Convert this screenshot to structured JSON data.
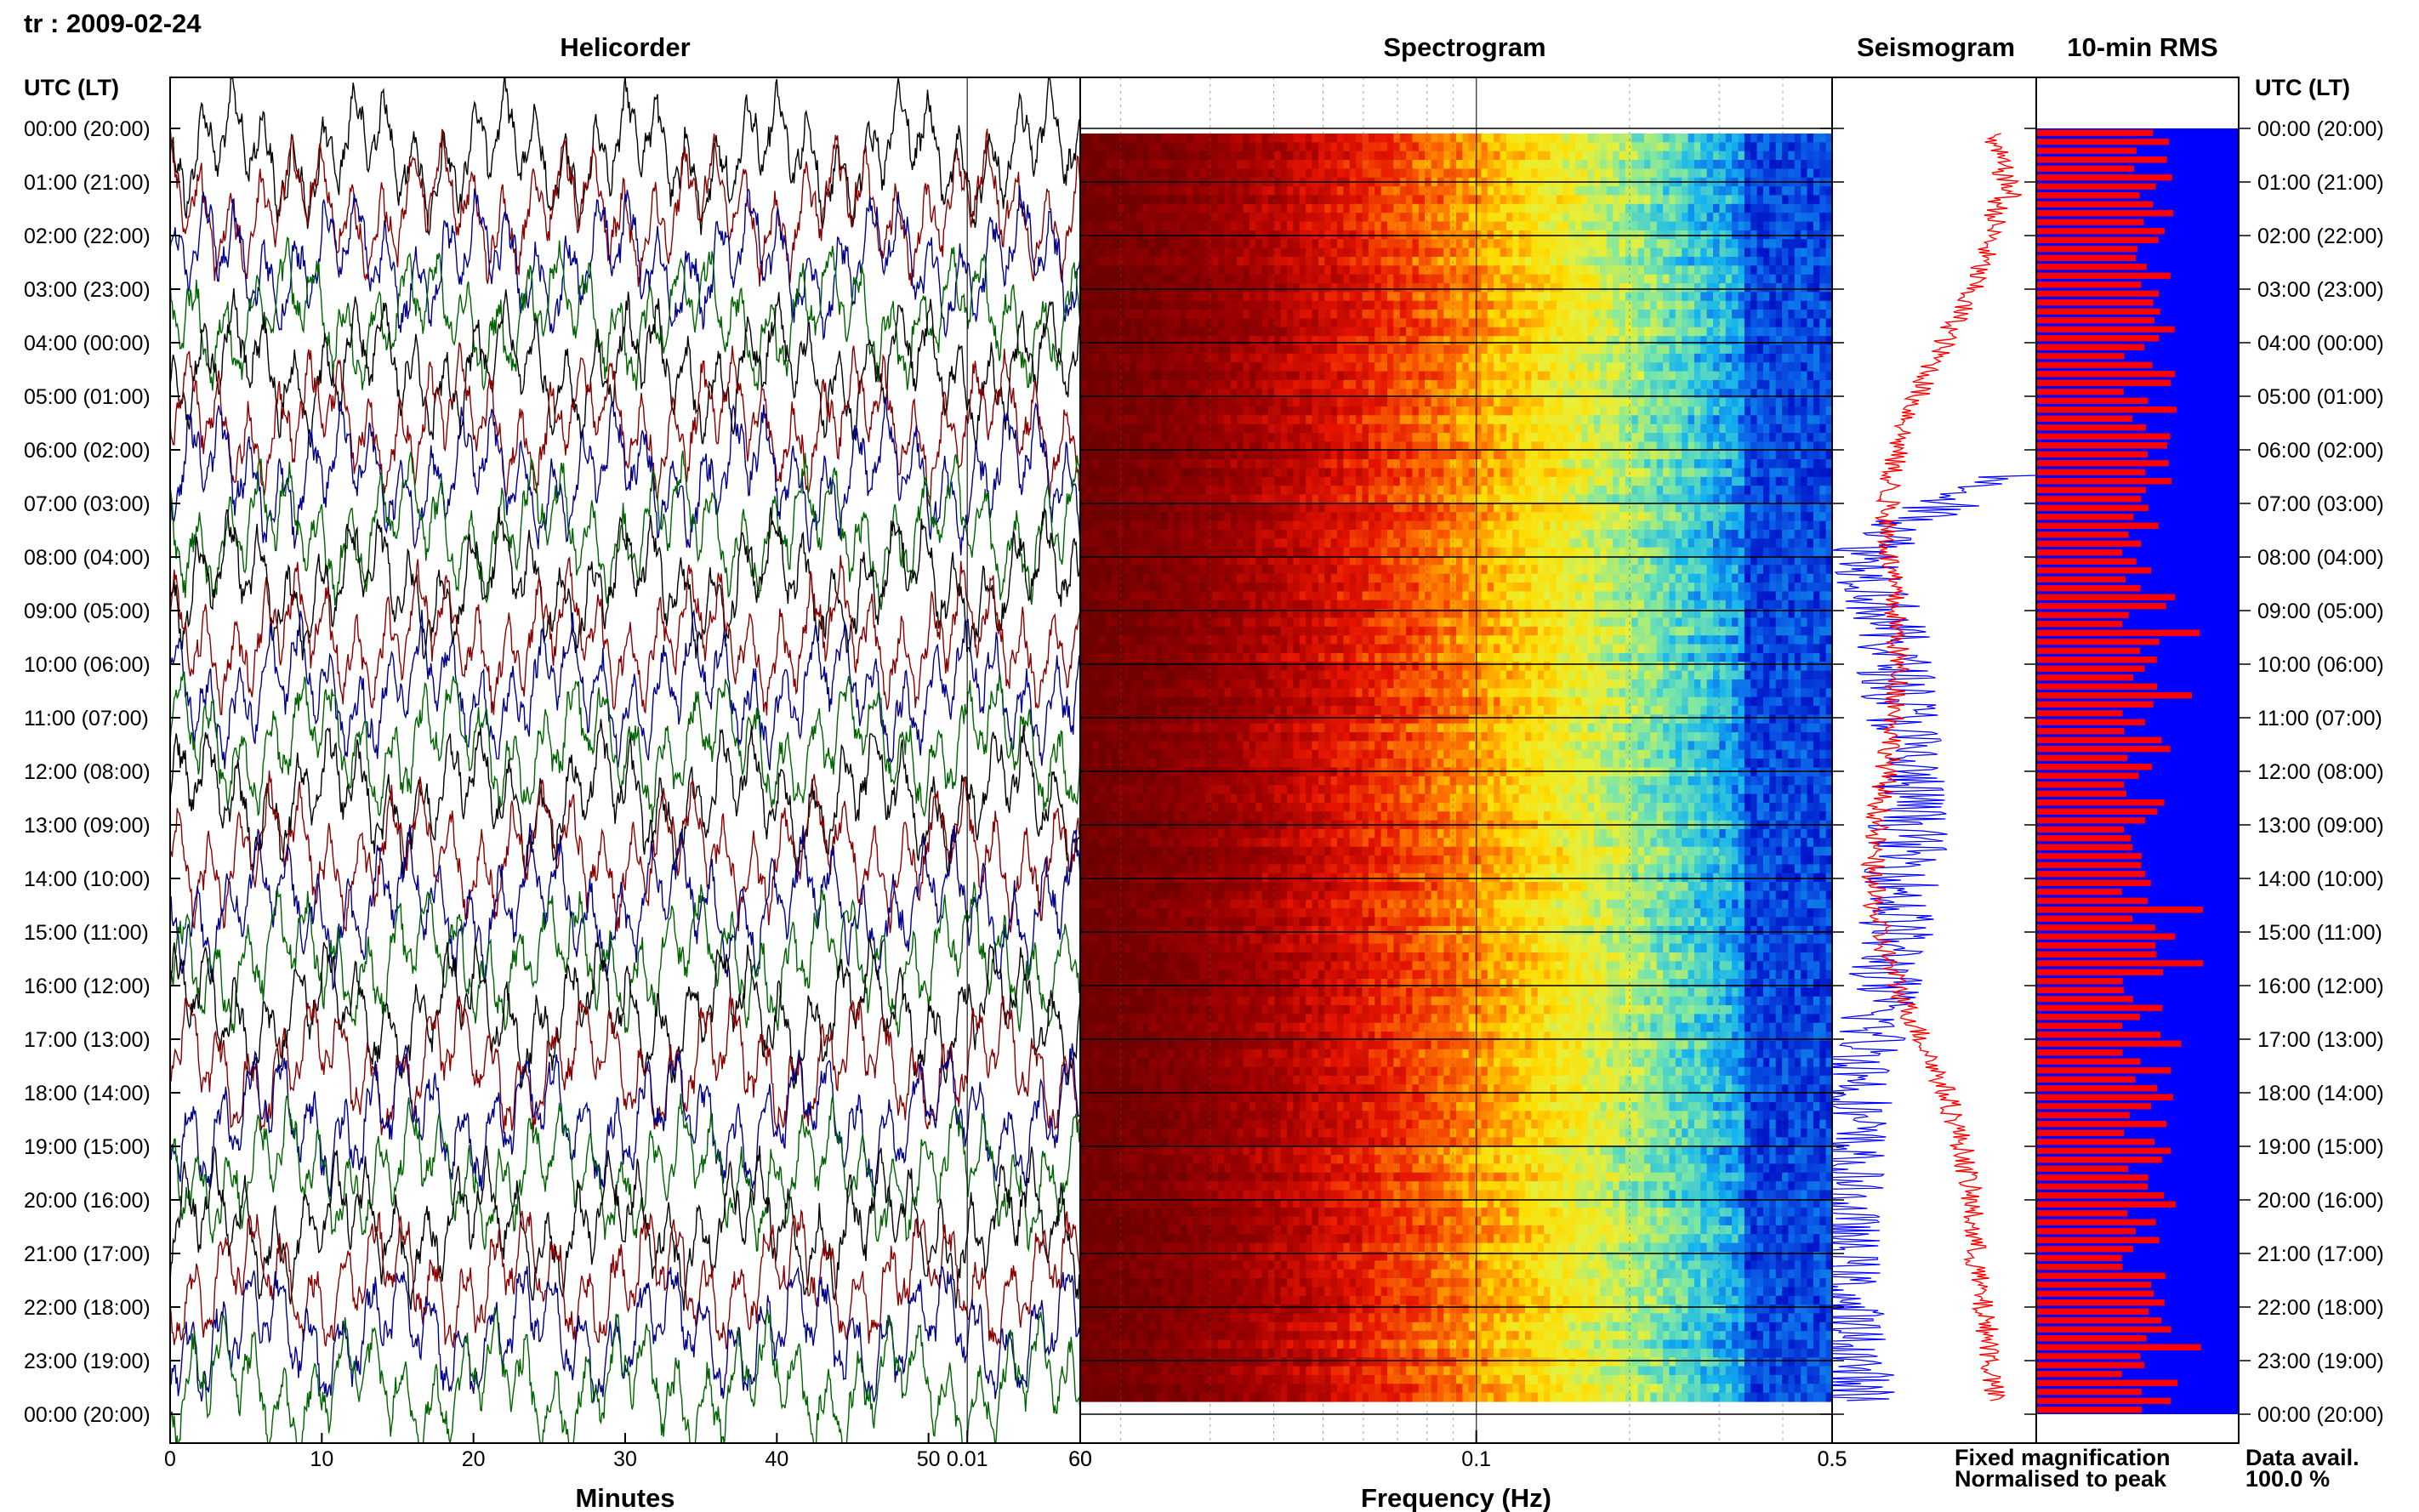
{
  "station_date": "tr : 2009-02-24",
  "panels": {
    "helicorder": "Helicorder",
    "spectrogram": "Spectrogram",
    "seismogram": "Seismogram",
    "rms": "10-min RMS"
  },
  "time_axis_label": "UTC (LT)",
  "time_ticks": [
    "00:00 (20:00)",
    "01:00 (21:00)",
    "02:00 (22:00)",
    "03:00 (23:00)",
    "04:00 (00:00)",
    "05:00 (01:00)",
    "06:00 (02:00)",
    "07:00 (03:00)",
    "08:00 (04:00)",
    "09:00 (05:00)",
    "10:00 (06:00)",
    "11:00 (07:00)",
    "12:00 (08:00)",
    "13:00 (09:00)",
    "14:00 (10:00)",
    "15:00 (11:00)",
    "16:00 (12:00)",
    "17:00 (13:00)",
    "18:00 (14:00)",
    "19:00 (15:00)",
    "20:00 (16:00)",
    "21:00 (17:00)",
    "22:00 (18:00)",
    "23:00 (19:00)",
    "00:00 (20:00)"
  ],
  "helicorder": {
    "xlabel": "Minutes",
    "xticks": [
      0,
      10,
      20,
      30,
      40,
      50,
      60
    ],
    "trace_colors": [
      "#000000",
      "#8b0000",
      "#00008b",
      "#006400"
    ]
  },
  "spectrogram": {
    "xlabel": "Frequency (Hz)",
    "xticks": [
      "60",
      "0.01",
      "0.1",
      "0.5"
    ],
    "scale": "log"
  },
  "seismogram": {
    "xtick": "0.5",
    "legend_fixed": "Fixed magnification",
    "legend_normalised": "Normalised to peak",
    "fixed_color": "#0000ff",
    "normalised_color": "#ff0000"
  },
  "rms": {
    "label": "Data avail.",
    "value": "100.0 %",
    "bar_color": "#ff0000",
    "bg_color": "#0000ff"
  },
  "chart_data": [
    {
      "type": "line",
      "title": "Helicorder",
      "xlabel": "Minutes",
      "ylabel": "UTC (LT)",
      "xlim": [
        0,
        60
      ],
      "rows": 24,
      "series_colors": [
        "#000000",
        "#8b0000",
        "#00008b",
        "#006400"
      ]
    },
    {
      "type": "heatmap",
      "title": "Spectrogram",
      "xlabel": "Frequency (Hz)",
      "x_scale": "log",
      "xlim_hz": [
        0.0167,
        0.5
      ],
      "tick_labels": [
        "60",
        "0.01",
        "0.1",
        "0.5"
      ]
    },
    {
      "type": "line",
      "title": "Seismogram",
      "series": [
        {
          "name": "Fixed magnification",
          "color": "#0000ff"
        },
        {
          "name": "Normalised to peak",
          "color": "#ff0000"
        }
      ]
    },
    {
      "type": "bar",
      "title": "10-min RMS",
      "bars": 144,
      "data_available_percent": 100.0
    }
  ]
}
